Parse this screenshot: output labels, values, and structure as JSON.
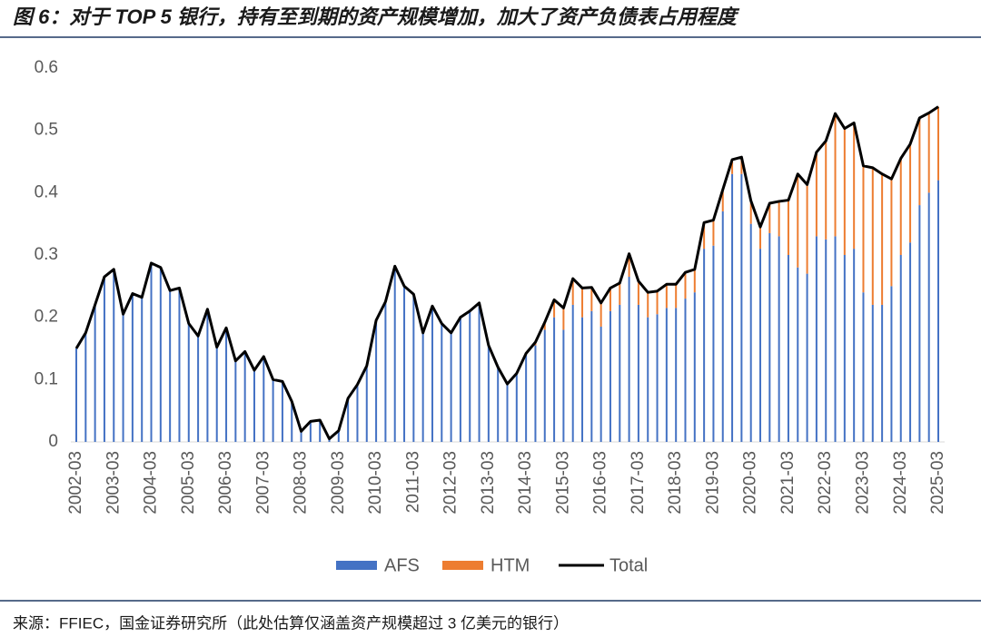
{
  "chart_data": {
    "type": "stacked_bar_line",
    "title": "图 6：对于 TOP 5 银行，持有至到期的资产规模增加，加大了资产负债表占用程度",
    "source": "来源：FFIEC，国金证券研究所（此处估算仅涵盖资产规模超过 3 亿美元的银行）",
    "categories": [
      "2002-03",
      null,
      null,
      null,
      "2003-03",
      null,
      null,
      null,
      "2004-03",
      null,
      null,
      null,
      "2005-03",
      null,
      null,
      null,
      "2006-03",
      null,
      null,
      null,
      "2007-03",
      null,
      null,
      null,
      "2008-03",
      null,
      null,
      null,
      "2009-03",
      null,
      null,
      null,
      "2010-03",
      null,
      null,
      null,
      "2011-03",
      null,
      null,
      null,
      "2012-03",
      null,
      null,
      null,
      "2013-03",
      null,
      null,
      null,
      "2014-03",
      null,
      null,
      null,
      "2015-03",
      null,
      null,
      null,
      "2016-03",
      null,
      null,
      null,
      "2017-03",
      null,
      null,
      null,
      "2018-03",
      null,
      null,
      null,
      "2019-03",
      null,
      null,
      null,
      "2020-03",
      null,
      null,
      null,
      "2021-03",
      null,
      null,
      null,
      "2022-03",
      null,
      null,
      null,
      "2023-03",
      null,
      null,
      null,
      "2024-03",
      null,
      null,
      null,
      "2025-03"
    ],
    "series": [
      {
        "name": "AFS",
        "color": "#4472c4",
        "values": [
          0.15,
          0.175,
          0.22,
          0.265,
          0.277,
          0.205,
          0.238,
          0.232,
          0.287,
          0.28,
          0.243,
          0.247,
          0.19,
          0.17,
          0.213,
          0.152,
          0.183,
          0.13,
          0.145,
          0.115,
          0.137,
          0.1,
          0.097,
          0.065,
          0.017,
          0.033,
          0.035,
          0.005,
          0.018,
          0.07,
          0.092,
          0.122,
          0.195,
          0.225,
          0.282,
          0.25,
          0.237,
          0.175,
          0.218,
          0.19,
          0.175,
          0.2,
          0.21,
          0.223,
          0.155,
          0.12,
          0.093,
          0.11,
          0.14,
          0.155,
          0.18,
          0.2,
          0.18,
          0.22,
          0.2,
          0.21,
          0.185,
          0.21,
          0.22,
          0.265,
          0.22,
          0.2,
          0.205,
          0.215,
          0.215,
          0.23,
          0.24,
          0.31,
          0.315,
          0.37,
          0.43,
          0.43,
          0.35,
          0.31,
          0.335,
          0.33,
          0.3,
          0.28,
          0.27,
          0.33,
          0.325,
          0.33,
          0.3,
          0.31,
          0.24,
          0.22,
          0.22,
          0.25,
          0.3,
          0.32,
          0.38,
          0.4,
          0.42
        ]
      },
      {
        "name": "HTM",
        "color": "#ed7d31",
        "values": [
          0,
          0,
          0,
          0,
          0,
          0,
          0,
          0,
          0,
          0,
          0,
          0,
          0,
          0,
          0,
          0,
          0,
          0,
          0,
          0,
          0,
          0,
          0,
          0,
          0,
          0,
          0,
          0,
          0,
          0,
          0,
          0,
          0,
          0,
          0,
          0,
          0,
          0,
          0,
          0,
          0,
          0,
          0,
          0,
          0,
          0,
          0,
          0,
          0.002,
          0.005,
          0.012,
          0.028,
          0.035,
          0.042,
          0.047,
          0.038,
          0.038,
          0.037,
          0.035,
          0.037,
          0.038,
          0.04,
          0.037,
          0.038,
          0.038,
          0.042,
          0.037,
          0.042,
          0.041,
          0.035,
          0.023,
          0.027,
          0.037,
          0.035,
          0.048,
          0.056,
          0.088,
          0.15,
          0.143,
          0.135,
          0.158,
          0.197,
          0.203,
          0.202,
          0.203,
          0.22,
          0.21,
          0.172,
          0.155,
          0.158,
          0.14,
          0.128,
          0.118
        ]
      },
      {
        "name": "Total",
        "color": "#000000",
        "values": [
          0.15,
          0.175,
          0.22,
          0.265,
          0.277,
          0.205,
          0.238,
          0.232,
          0.287,
          0.28,
          0.243,
          0.247,
          0.19,
          0.17,
          0.213,
          0.152,
          0.183,
          0.13,
          0.145,
          0.115,
          0.137,
          0.1,
          0.097,
          0.065,
          0.017,
          0.033,
          0.035,
          0.005,
          0.018,
          0.07,
          0.092,
          0.122,
          0.195,
          0.225,
          0.282,
          0.25,
          0.237,
          0.175,
          0.218,
          0.19,
          0.175,
          0.2,
          0.21,
          0.223,
          0.155,
          0.12,
          0.093,
          0.11,
          0.142,
          0.16,
          0.192,
          0.228,
          0.215,
          0.262,
          0.247,
          0.248,
          0.223,
          0.247,
          0.255,
          0.302,
          0.258,
          0.24,
          0.242,
          0.253,
          0.253,
          0.272,
          0.277,
          0.352,
          0.356,
          0.405,
          0.453,
          0.457,
          0.387,
          0.345,
          0.383,
          0.386,
          0.388,
          0.43,
          0.413,
          0.465,
          0.483,
          0.527,
          0.503,
          0.512,
          0.443,
          0.44,
          0.43,
          0.422,
          0.455,
          0.478,
          0.52,
          0.528,
          0.538
        ]
      }
    ],
    "ylim": [
      0,
      0.6
    ],
    "yticks": [
      0,
      0.1,
      0.2,
      0.3,
      0.4,
      0.5,
      0.6
    ],
    "grid": false
  }
}
